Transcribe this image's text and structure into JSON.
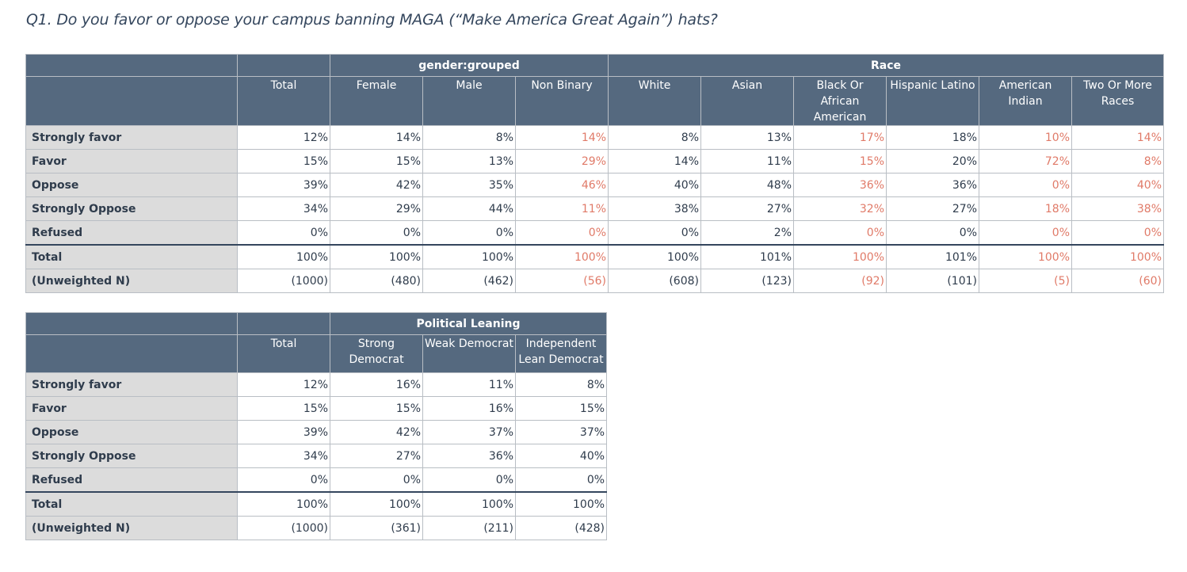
{
  "question": "Q1. Do you favor or oppose your campus banning MAGA (“Make America Great Again”) hats?",
  "table1": {
    "groups": [
      "gender:grouped",
      "Race"
    ],
    "columns": [
      "Total",
      "Female",
      "Male",
      "Non Binary",
      "White",
      "Asian",
      "Black Or African American",
      "Hispanic Latino",
      "American Indian",
      "Two Or More Races"
    ],
    "low_n_columns": [
      3,
      6,
      8,
      9
    ],
    "rows": [
      {
        "label": "Strongly favor",
        "values": [
          "12%",
          "14%",
          "8%",
          "14%",
          "8%",
          "13%",
          "17%",
          "18%",
          "10%",
          "14%"
        ]
      },
      {
        "label": "Favor",
        "values": [
          "15%",
          "15%",
          "13%",
          "29%",
          "14%",
          "11%",
          "15%",
          "20%",
          "72%",
          "8%"
        ]
      },
      {
        "label": "Oppose",
        "values": [
          "39%",
          "42%",
          "35%",
          "46%",
          "40%",
          "48%",
          "36%",
          "36%",
          "0%",
          "40%"
        ]
      },
      {
        "label": "Strongly Oppose",
        "values": [
          "34%",
          "29%",
          "44%",
          "11%",
          "38%",
          "27%",
          "32%",
          "27%",
          "18%",
          "38%"
        ]
      },
      {
        "label": "Refused",
        "values": [
          "0%",
          "0%",
          "0%",
          "0%",
          "0%",
          "2%",
          "0%",
          "0%",
          "0%",
          "0%"
        ]
      },
      {
        "label": "Total",
        "values": [
          "100%",
          "100%",
          "100%",
          "100%",
          "100%",
          "101%",
          "100%",
          "101%",
          "100%",
          "100%"
        ]
      },
      {
        "label": "(Unweighted N)",
        "values": [
          "(1000)",
          "(480)",
          "(462)",
          "(56)",
          "(608)",
          "(123)",
          "(92)",
          "(101)",
          "(5)",
          "(60)"
        ]
      }
    ]
  },
  "table2": {
    "groups": [
      "Political Leaning"
    ],
    "columns": [
      "Total",
      "Strong Democrat",
      "Weak Democrat",
      "Independent Lean Democrat"
    ],
    "rows": [
      {
        "label": "Strongly favor",
        "values": [
          "12%",
          "16%",
          "11%",
          "8%"
        ]
      },
      {
        "label": "Favor",
        "values": [
          "15%",
          "15%",
          "16%",
          "15%"
        ]
      },
      {
        "label": "Oppose",
        "values": [
          "39%",
          "42%",
          "37%",
          "37%"
        ]
      },
      {
        "label": "Strongly Oppose",
        "values": [
          "34%",
          "27%",
          "36%",
          "40%"
        ]
      },
      {
        "label": "Refused",
        "values": [
          "0%",
          "0%",
          "0%",
          "0%"
        ]
      },
      {
        "label": "Total",
        "values": [
          "100%",
          "100%",
          "100%",
          "100%"
        ]
      },
      {
        "label": "(Unweighted N)",
        "values": [
          "(1000)",
          "(361)",
          "(211)",
          "(428)"
        ]
      }
    ]
  },
  "colors": {
    "header_bg": "#55697f",
    "row_label_bg": "#dcdcdc",
    "low_n_text": "#e07a68",
    "text": "#2f3c4c"
  }
}
